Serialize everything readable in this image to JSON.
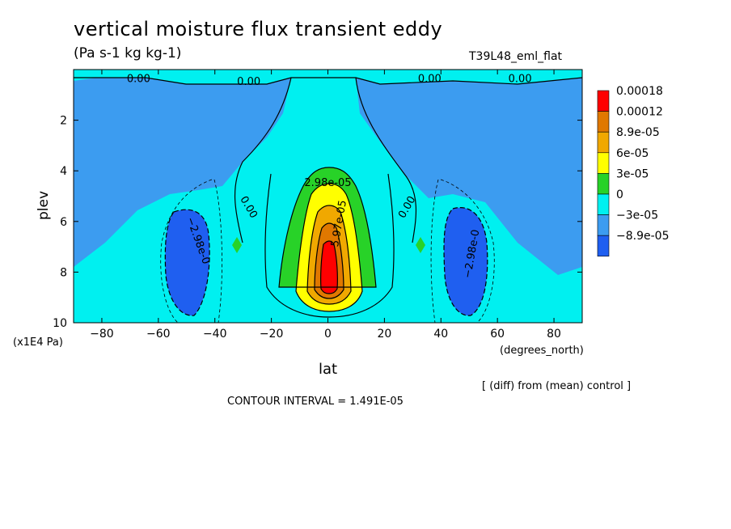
{
  "title": "vertical moisture flux transient eddy",
  "units": "(Pa s-1 kg kg-1)",
  "run_name": "T39L48_eml_flat",
  "x_units_note": "(x1E4 Pa)",
  "diff_note": "[ (diff) from (mean) control ]",
  "contour_interval": "CONTOUR INTERVAL = 1.491E-05",
  "colors": {
    "c_neg2": "#1f5ff0",
    "c_neg1": "#3c9cf0",
    "c_0": "#00f0f0",
    "c_1": "#28d228",
    "c_2": "#ffff00",
    "c_3": "#f0a800",
    "c_4": "#e07800",
    "c_5": "#ff0000"
  },
  "chart_data": {
    "type": "heatmap",
    "xlabel": "lat",
    "xunits": "(degrees_north)",
    "ylabel": "plev",
    "xlim": [
      -90,
      90
    ],
    "ylim": [
      10,
      0
    ],
    "x_ticks": [
      -80,
      -60,
      -40,
      -20,
      0,
      20,
      40,
      60,
      80
    ],
    "y_ticks": [
      2,
      4,
      6,
      8,
      10
    ],
    "legend": {
      "placement": "right",
      "levels": [
        "0.00018",
        "0.00012",
        "8.9e-05",
        "6e-05",
        "3e-05",
        "0",
        "-3e-05",
        "-8.9e-05"
      ],
      "colors": [
        "#ff0000",
        "#e07800",
        "#f0a800",
        "#ffff00",
        "#28d228",
        "#00f0f0",
        "#3c9cf0",
        "#1f5ff0"
      ]
    },
    "contour_labels": [
      {
        "text": "0.00",
        "lat": -67,
        "plev": 0.5
      },
      {
        "text": "0.00",
        "lat": -28,
        "plev": 0.6
      },
      {
        "text": "0.00",
        "lat": 36,
        "plev": 0.5
      },
      {
        "text": "0.00",
        "lat": 68,
        "plev": 0.5
      },
      {
        "text": "0.00",
        "lat": -29,
        "plev": 5.5
      },
      {
        "text": "0.00",
        "lat": 29,
        "plev": 5.5
      },
      {
        "text": "-2.98e-0",
        "lat": -47,
        "plev": 6.8
      },
      {
        "text": "-2.98e-0",
        "lat": 52,
        "plev": 7.3
      },
      {
        "text": "2.98e-05",
        "lat": 0,
        "plev": 4.6
      },
      {
        "text": "5.97e-05",
        "lat": 5,
        "plev": 6.1
      }
    ]
  }
}
